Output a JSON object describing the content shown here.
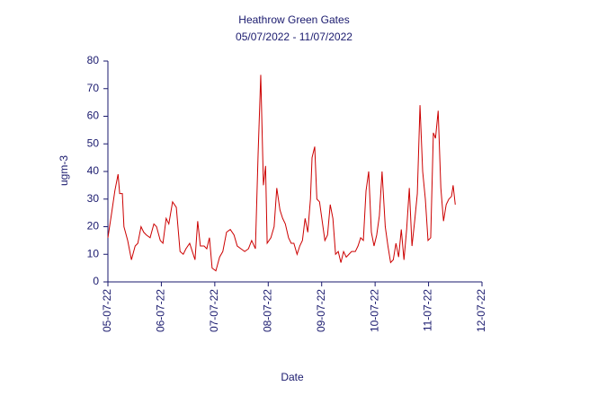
{
  "chart_data": {
    "type": "line",
    "title": "Heathrow Green Gates",
    "subtitle": "05/07/2022 - 11/07/2022",
    "x_label": "Date",
    "y_label": "ugm-3",
    "xlim": [
      0,
      7
    ],
    "xticks": [
      {
        "value": 0,
        "label": "05-07-22"
      },
      {
        "value": 1,
        "label": "06-07-22"
      },
      {
        "value": 2,
        "label": "07-07-22"
      },
      {
        "value": 3,
        "label": "08-07-22"
      },
      {
        "value": 4,
        "label": "09-07-22"
      },
      {
        "value": 5,
        "label": "10-07-22"
      },
      {
        "value": 6,
        "label": "11-07-22"
      },
      {
        "value": 7,
        "label": "12-07-22"
      }
    ],
    "ylim": [
      0,
      80
    ],
    "yticks": [
      0,
      10,
      20,
      30,
      40,
      50,
      60,
      70,
      80
    ],
    "grid": false,
    "x": [
      0,
      0.07,
      0.13,
      0.19,
      0.22,
      0.27,
      0.3,
      0.37,
      0.44,
      0.51,
      0.56,
      0.62,
      0.67,
      0.72,
      0.79,
      0.86,
      0.91,
      0.98,
      1.03,
      1.09,
      1.14,
      1.21,
      1.28,
      1.35,
      1.41,
      1.46,
      1.53,
      1.58,
      1.63,
      1.68,
      1.73,
      1.8,
      1.85,
      1.9,
      1.95,
      2.02,
      2.09,
      2.15,
      2.22,
      2.29,
      2.36,
      2.42,
      2.49,
      2.56,
      2.63,
      2.69,
      2.76,
      2.81,
      2.86,
      2.91,
      2.95,
      2.98,
      3.05,
      3.11,
      3.16,
      3.22,
      3.27,
      3.32,
      3.38,
      3.43,
      3.48,
      3.54,
      3.59,
      3.64,
      3.69,
      3.74,
      3.79,
      3.82,
      3.87,
      3.91,
      3.96,
      4.01,
      4.06,
      4.11,
      4.16,
      4.21,
      4.26,
      4.31,
      4.36,
      4.41,
      4.46,
      4.51,
      4.56,
      4.63,
      4.68,
      4.73,
      4.78,
      4.83,
      4.88,
      4.93,
      4.98,
      5.03,
      5.08,
      5.13,
      5.19,
      5.24,
      5.29,
      5.34,
      5.39,
      5.44,
      5.49,
      5.54,
      5.59,
      5.64,
      5.69,
      5.74,
      5.79,
      5.84,
      5.89,
      5.94,
      5.99,
      6.04,
      6.09,
      6.13,
      6.18,
      6.23,
      6.28,
      6.33,
      6.38,
      6.43,
      6.46,
      6.5
    ],
    "series": [
      {
        "name": "Heathrow Green Gates",
        "color": "#cc0000",
        "values": [
          16,
          25,
          33,
          39,
          32,
          32,
          20,
          15,
          8,
          13,
          14,
          20,
          18,
          17,
          16,
          21,
          20,
          15,
          14,
          23,
          21,
          29,
          27,
          11,
          10,
          12,
          14,
          11,
          8,
          22,
          13,
          13,
          12,
          16,
          5,
          4,
          9,
          11,
          18,
          19,
          17,
          13,
          12,
          11,
          12,
          15,
          12,
          46,
          75,
          35,
          42,
          14,
          16,
          20,
          34,
          26,
          23,
          21,
          16,
          14,
          14,
          10,
          13,
          15,
          23,
          18,
          30,
          45,
          49,
          30,
          29,
          22,
          15,
          17,
          28,
          23,
          10,
          11,
          7,
          11,
          9,
          10,
          11,
          11,
          13,
          16,
          15,
          33,
          40,
          18,
          13,
          17,
          24,
          40,
          20,
          13,
          7,
          8,
          14,
          9,
          19,
          8,
          19,
          34,
          13,
          22,
          32,
          64,
          40,
          30,
          15,
          16,
          54,
          52,
          62,
          34,
          22,
          28,
          30,
          31,
          35,
          28
        ]
      }
    ]
  }
}
